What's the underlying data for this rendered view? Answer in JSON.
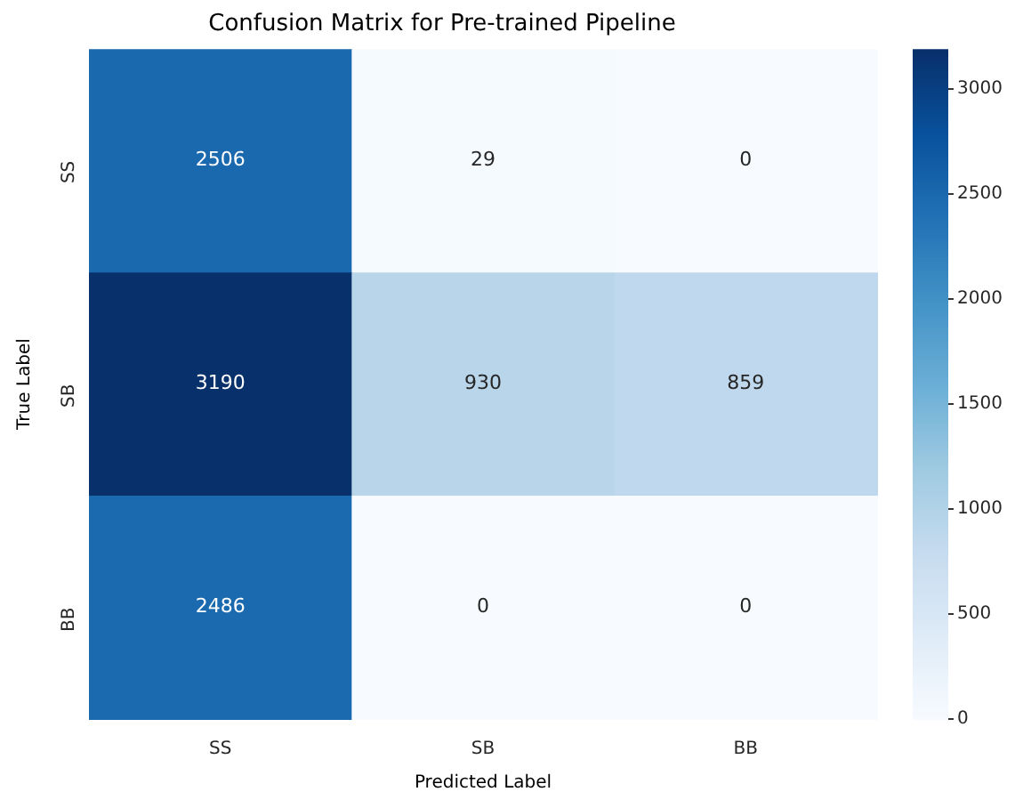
{
  "chart_data": {
    "type": "heatmap",
    "title": "Confusion Matrix for Pre-trained Pipeline",
    "xlabel": "Predicted Label",
    "ylabel": "True Label",
    "categories": [
      "SS",
      "SB",
      "BB"
    ],
    "y_categories": [
      "SS",
      "SB",
      "BB"
    ],
    "cells": [
      [
        2506,
        29,
        0
      ],
      [
        3190,
        930,
        859
      ],
      [
        2486,
        0,
        0
      ]
    ],
    "clim": [
      0,
      3190
    ],
    "cticks": [
      0,
      500,
      1000,
      1500,
      2000,
      2500,
      3000
    ],
    "data_labels": true
  }
}
